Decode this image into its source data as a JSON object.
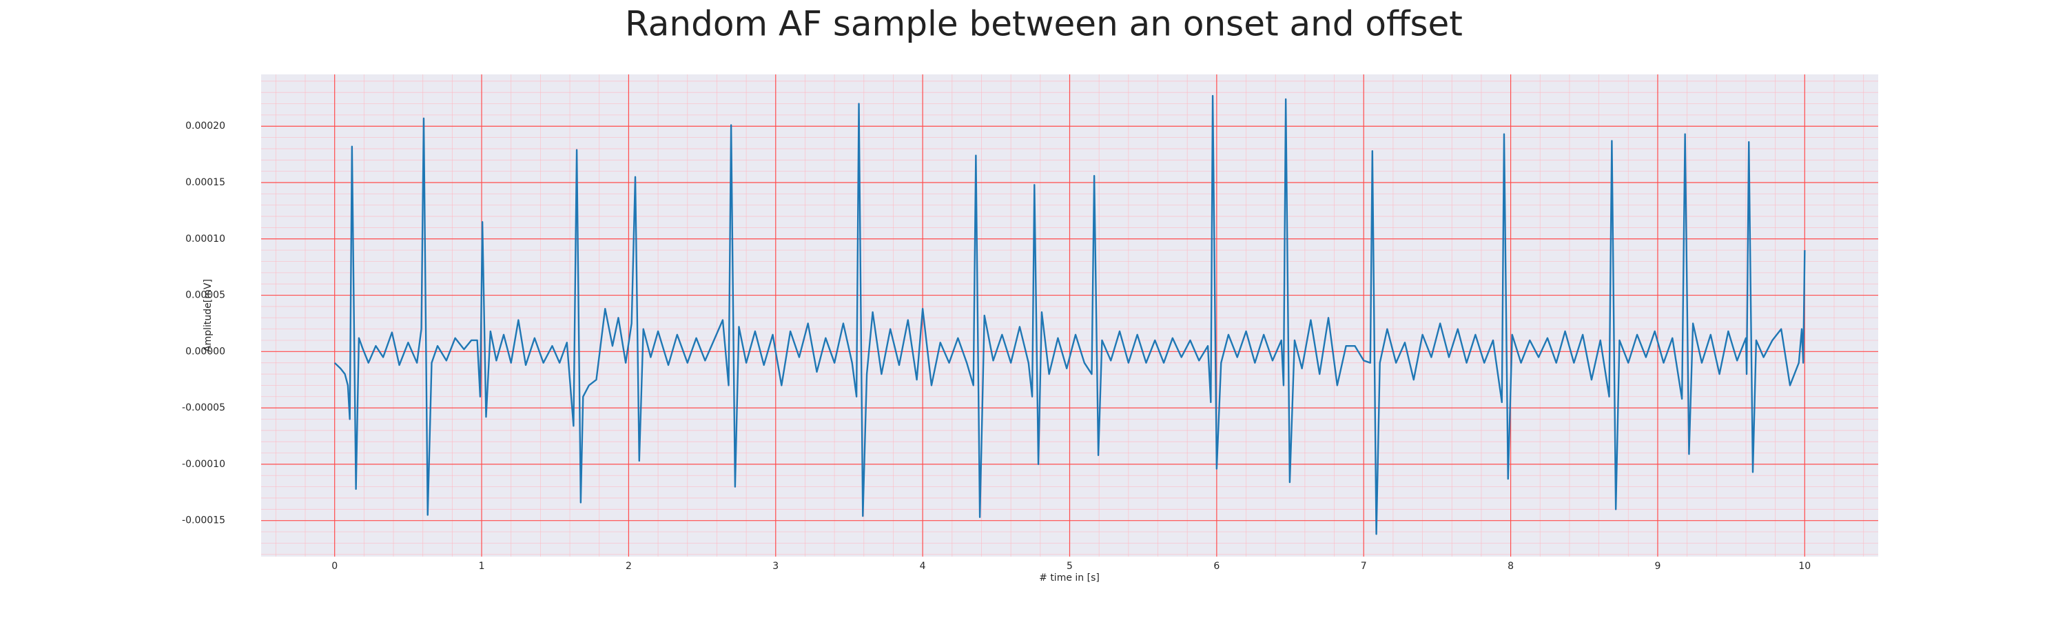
{
  "chart_data": {
    "type": "line",
    "title": "Random AF sample between an onset and offset",
    "xlabel": "# time in [s]",
    "ylabel": "Amplitude[mV]",
    "color": "#1f77b4",
    "grid": true,
    "minor_grid": true,
    "x": [
      0.0,
      0.04,
      0.07,
      0.09,
      0.103,
      0.118,
      0.145,
      0.165,
      0.19,
      0.23,
      0.28,
      0.33,
      0.39,
      0.44,
      0.5,
      0.56,
      0.59,
      0.606,
      0.633,
      0.66,
      0.7,
      0.76,
      0.82,
      0.88,
      0.93,
      0.97,
      0.99,
      1.005,
      1.03,
      1.06,
      1.1,
      1.15,
      1.2,
      1.25,
      1.3,
      1.36,
      1.42,
      1.48,
      1.53,
      1.58,
      1.625,
      1.647,
      1.674,
      1.69,
      1.73,
      1.78,
      1.84,
      1.89,
      1.93,
      1.98,
      2.02,
      2.045,
      2.072,
      2.1,
      2.15,
      2.2,
      2.27,
      2.33,
      2.4,
      2.46,
      2.52,
      2.58,
      2.64,
      2.68,
      2.697,
      2.724,
      2.75,
      2.8,
      2.86,
      2.92,
      2.98,
      3.04,
      3.1,
      3.16,
      3.22,
      3.28,
      3.34,
      3.4,
      3.46,
      3.52,
      3.55,
      3.566,
      3.593,
      3.62,
      3.66,
      3.72,
      3.78,
      3.84,
      3.9,
      3.96,
      4.0,
      4.06,
      4.12,
      4.18,
      4.24,
      4.3,
      4.345,
      4.362,
      4.389,
      4.42,
      4.48,
      4.54,
      4.6,
      4.66,
      4.72,
      4.745,
      4.76,
      4.787,
      4.81,
      4.86,
      4.92,
      4.98,
      5.04,
      5.1,
      5.15,
      5.167,
      5.195,
      5.22,
      5.28,
      5.34,
      5.4,
      5.46,
      5.52,
      5.58,
      5.64,
      5.7,
      5.76,
      5.82,
      5.88,
      5.94,
      5.96,
      5.973,
      6.0,
      6.03,
      6.08,
      6.14,
      6.2,
      6.26,
      6.32,
      6.38,
      6.44,
      6.455,
      6.47,
      6.497,
      6.53,
      6.58,
      6.64,
      6.7,
      6.76,
      6.82,
      6.88,
      6.94,
      7.0,
      7.045,
      7.059,
      7.086,
      7.11,
      7.16,
      7.22,
      7.28,
      7.34,
      7.4,
      7.46,
      7.52,
      7.58,
      7.64,
      7.7,
      7.76,
      7.82,
      7.88,
      7.94,
      7.955,
      7.982,
      8.01,
      8.07,
      8.13,
      8.19,
      8.25,
      8.31,
      8.37,
      8.43,
      8.49,
      8.55,
      8.61,
      8.67,
      8.688,
      8.715,
      8.74,
      8.8,
      8.86,
      8.92,
      8.98,
      9.04,
      9.1,
      9.165,
      9.186,
      9.213,
      9.24,
      9.3,
      9.36,
      9.42,
      9.48,
      9.54,
      9.6,
      9.605,
      9.62,
      9.647,
      9.67,
      9.72,
      9.78,
      9.84,
      9.9,
      9.96,
      9.98,
      9.99,
      10.0
    ],
    "values": [
      -1e-05,
      -1.5e-05,
      -2e-05,
      -3e-05,
      -6e-05,
      0.000182,
      -0.000122,
      1.2e-05,
      3e-06,
      -1e-05,
      5e-06,
      -5e-06,
      1.7e-05,
      -1.2e-05,
      8e-06,
      -1e-05,
      2e-05,
      0.000207,
      -0.000145,
      -1e-05,
      5e-06,
      -8e-06,
      1.2e-05,
      2e-06,
      1e-05,
      1e-05,
      -4e-05,
      0.000115,
      -5.8e-05,
      1.8e-05,
      -8e-06,
      1.5e-05,
      -1e-05,
      2.8e-05,
      -1.2e-05,
      1.2e-05,
      -1e-05,
      5e-06,
      -1e-05,
      8e-06,
      -6.6e-05,
      0.000179,
      -0.000134,
      -4e-05,
      -3e-05,
      -2.5e-05,
      3.8e-05,
      5e-06,
      3e-05,
      -1e-05,
      2.5e-05,
      0.000155,
      -9.7e-05,
      2e-05,
      -5e-06,
      1.8e-05,
      -1.2e-05,
      1.5e-05,
      -1e-05,
      1.2e-05,
      -8e-06,
      1e-05,
      2.8e-05,
      -3e-05,
      0.000201,
      -0.00012,
      2.2e-05,
      -1e-05,
      1.8e-05,
      -1.2e-05,
      1.5e-05,
      -3e-05,
      1.8e-05,
      -5e-06,
      2.5e-05,
      -1.8e-05,
      1.2e-05,
      -1e-05,
      2.5e-05,
      -1e-05,
      -4e-05,
      0.00022,
      -0.000146,
      -2e-05,
      3.5e-05,
      -2e-05,
      2e-05,
      -1.2e-05,
      2.8e-05,
      -2.5e-05,
      3.8e-05,
      -3e-05,
      8e-06,
      -1e-05,
      1.2e-05,
      -1e-05,
      -3e-05,
      0.000174,
      -0.000147,
      3.2e-05,
      -8e-06,
      1.5e-05,
      -1e-05,
      2.2e-05,
      -1e-05,
      -4e-05,
      0.000148,
      -0.0001,
      3.5e-05,
      -2e-05,
      1.2e-05,
      -1.5e-05,
      1.5e-05,
      -1e-05,
      -2e-05,
      0.000156,
      -9.2e-05,
      1e-05,
      -8e-06,
      1.8e-05,
      -1e-05,
      1.5e-05,
      -1e-05,
      1e-05,
      -1e-05,
      1.2e-05,
      -5e-06,
      1e-05,
      -8e-06,
      5e-06,
      -4.5e-05,
      0.000227,
      -0.000104,
      -1e-05,
      1.5e-05,
      -5e-06,
      1.8e-05,
      -1e-05,
      1.5e-05,
      -8e-06,
      1e-05,
      -3e-05,
      0.000224,
      -0.000116,
      1e-05,
      -1.5e-05,
      2.8e-05,
      -2e-05,
      3e-05,
      -3e-05,
      5e-06,
      5e-06,
      -8e-06,
      -1e-05,
      0.000178,
      -0.000162,
      -1e-05,
      2e-05,
      -1e-05,
      8e-06,
      -2.5e-05,
      1.5e-05,
      -5e-06,
      2.5e-05,
      -5e-06,
      2e-05,
      -1e-05,
      1.5e-05,
      -1e-05,
      1e-05,
      -4.5e-05,
      0.000193,
      -0.000113,
      1.5e-05,
      -1e-05,
      1e-05,
      -5e-06,
      1.2e-05,
      -1e-05,
      1.8e-05,
      -1e-05,
      1.5e-05,
      -2.5e-05,
      1e-05,
      -4e-05,
      0.000187,
      -0.00014,
      1e-05,
      -1e-05,
      1.5e-05,
      -5e-06,
      1.8e-05,
      -1e-05,
      1.2e-05,
      -4.2e-05,
      0.000193,
      -9.1e-05,
      2.5e-05,
      -1e-05,
      1.5e-05,
      -2e-05,
      1.8e-05,
      -8e-06,
      1.2e-05,
      -2e-05,
      0.000186,
      -0.000107,
      1e-05,
      -5e-06,
      1e-05,
      2e-05,
      -3e-05,
      -1e-05,
      2e-05,
      -1e-05,
      9e-05
    ],
    "xlim": [
      -0.5,
      10.5
    ],
    "xticks": [
      0,
      1,
      2,
      3,
      4,
      5,
      6,
      7,
      8,
      9,
      10
    ],
    "ylim": [
      -0.000182,
      0.000246
    ],
    "yticks": [
      {
        "value": -0.00015,
        "label": "-0.00015"
      },
      {
        "value": -0.0001,
        "label": "-0.00010"
      },
      {
        "value": -5e-05,
        "label": "-0.00005"
      },
      {
        "value": 0,
        "label": "0.00000"
      },
      {
        "value": 5e-05,
        "label": "0.00005"
      },
      {
        "value": 0.0001,
        "label": "0.00010"
      },
      {
        "value": 0.00015,
        "label": "0.00015"
      },
      {
        "value": 0.0002,
        "label": "0.00020"
      }
    ]
  }
}
